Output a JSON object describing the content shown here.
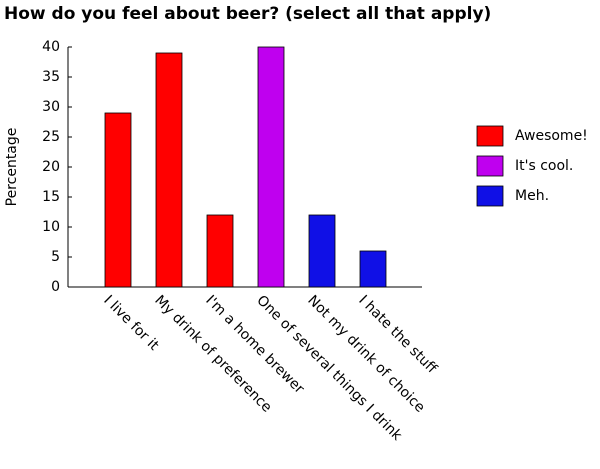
{
  "chart_data": {
    "type": "bar",
    "title": "How do you feel about beer? (select all that apply)",
    "ylabel": "Percentage",
    "categories": [
      "I live for it",
      "My drink of preference",
      "I'm a home brewer",
      "One of several things I drink",
      "Not my drink of choice",
      "I hate the stuff"
    ],
    "series": [
      {
        "name": "Awesome!",
        "color": "#ff0000",
        "values": [
          29,
          39,
          12,
          null,
          null,
          null
        ]
      },
      {
        "name": "It's cool.",
        "color": "#bf00ef",
        "values": [
          null,
          null,
          null,
          40,
          null,
          null
        ]
      },
      {
        "name": "Meh.",
        "color": "#1010e6",
        "values": [
          null,
          null,
          null,
          null,
          12,
          6
        ]
      }
    ],
    "ylim": [
      0,
      40
    ],
    "yticks": [
      0,
      5,
      10,
      15,
      20,
      25,
      30,
      35,
      40
    ],
    "legend": "right"
  }
}
